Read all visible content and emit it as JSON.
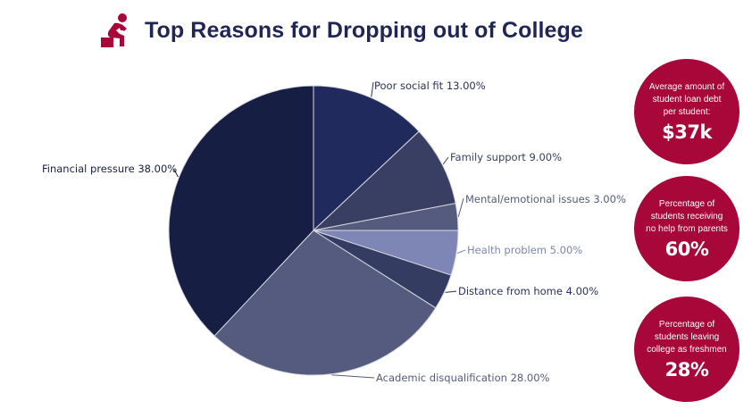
{
  "header": {
    "title": "Top Reasons for Dropping out of College",
    "icon": "thinking-person-icon"
  },
  "colors": {
    "title": "#1f2656",
    "accent": "#a8073a",
    "slice_separator": "#d8d8e0"
  },
  "chart_data": {
    "type": "pie",
    "title": "Top Reasons for Dropping out of College",
    "start_angle_deg": 0,
    "direction": "clockwise",
    "slices": [
      {
        "label": "Poor social fit",
        "value": 13.0,
        "display": "Poor social fit 13.00%",
        "color": "#212a5c",
        "label_color": "#2a3060"
      },
      {
        "label": "Family support",
        "value": 9.0,
        "display": "Family support 9.00%",
        "color": "#383f62",
        "label_color": "#383f62"
      },
      {
        "label": "Mental/emotional issues",
        "value": 3.0,
        "display": "Mental/emotional issues 3.00%",
        "color": "#545b7e",
        "label_color": "#545b7e"
      },
      {
        "label": "Health problem",
        "value": 5.0,
        "display": "Health problem 5.00%",
        "color": "#7d86b4",
        "label_color": "#7d86b4"
      },
      {
        "label": "Distance from home",
        "value": 4.0,
        "display": "Distance from home 4.00%",
        "color": "#353c61",
        "label_color": "#2a3060"
      },
      {
        "label": "Academic disqualification",
        "value": 28.0,
        "display": "Academic disqualification 28.00%",
        "color": "#545b7e",
        "label_color": "#545b7e"
      },
      {
        "label": "Financial pressure",
        "value": 38.0,
        "display": "Financial pressure 38.00%",
        "color": "#171e44",
        "label_color": "#171e44"
      }
    ]
  },
  "stats": [
    {
      "description": "Average amount of student loan debt per student:",
      "lines": [
        "Average amount of",
        "student loan debt",
        "per student:"
      ],
      "value": "$37k"
    },
    {
      "description": "Percentage of students receiving no help from parents",
      "lines": [
        "Percentage of",
        "students receiving",
        "no help from parents"
      ],
      "value": "60%"
    },
    {
      "description": "Percentage of students leaving college as freshmen",
      "lines": [
        "Percentage of",
        "students leaving",
        "college as freshmen"
      ],
      "value": "28%"
    }
  ]
}
